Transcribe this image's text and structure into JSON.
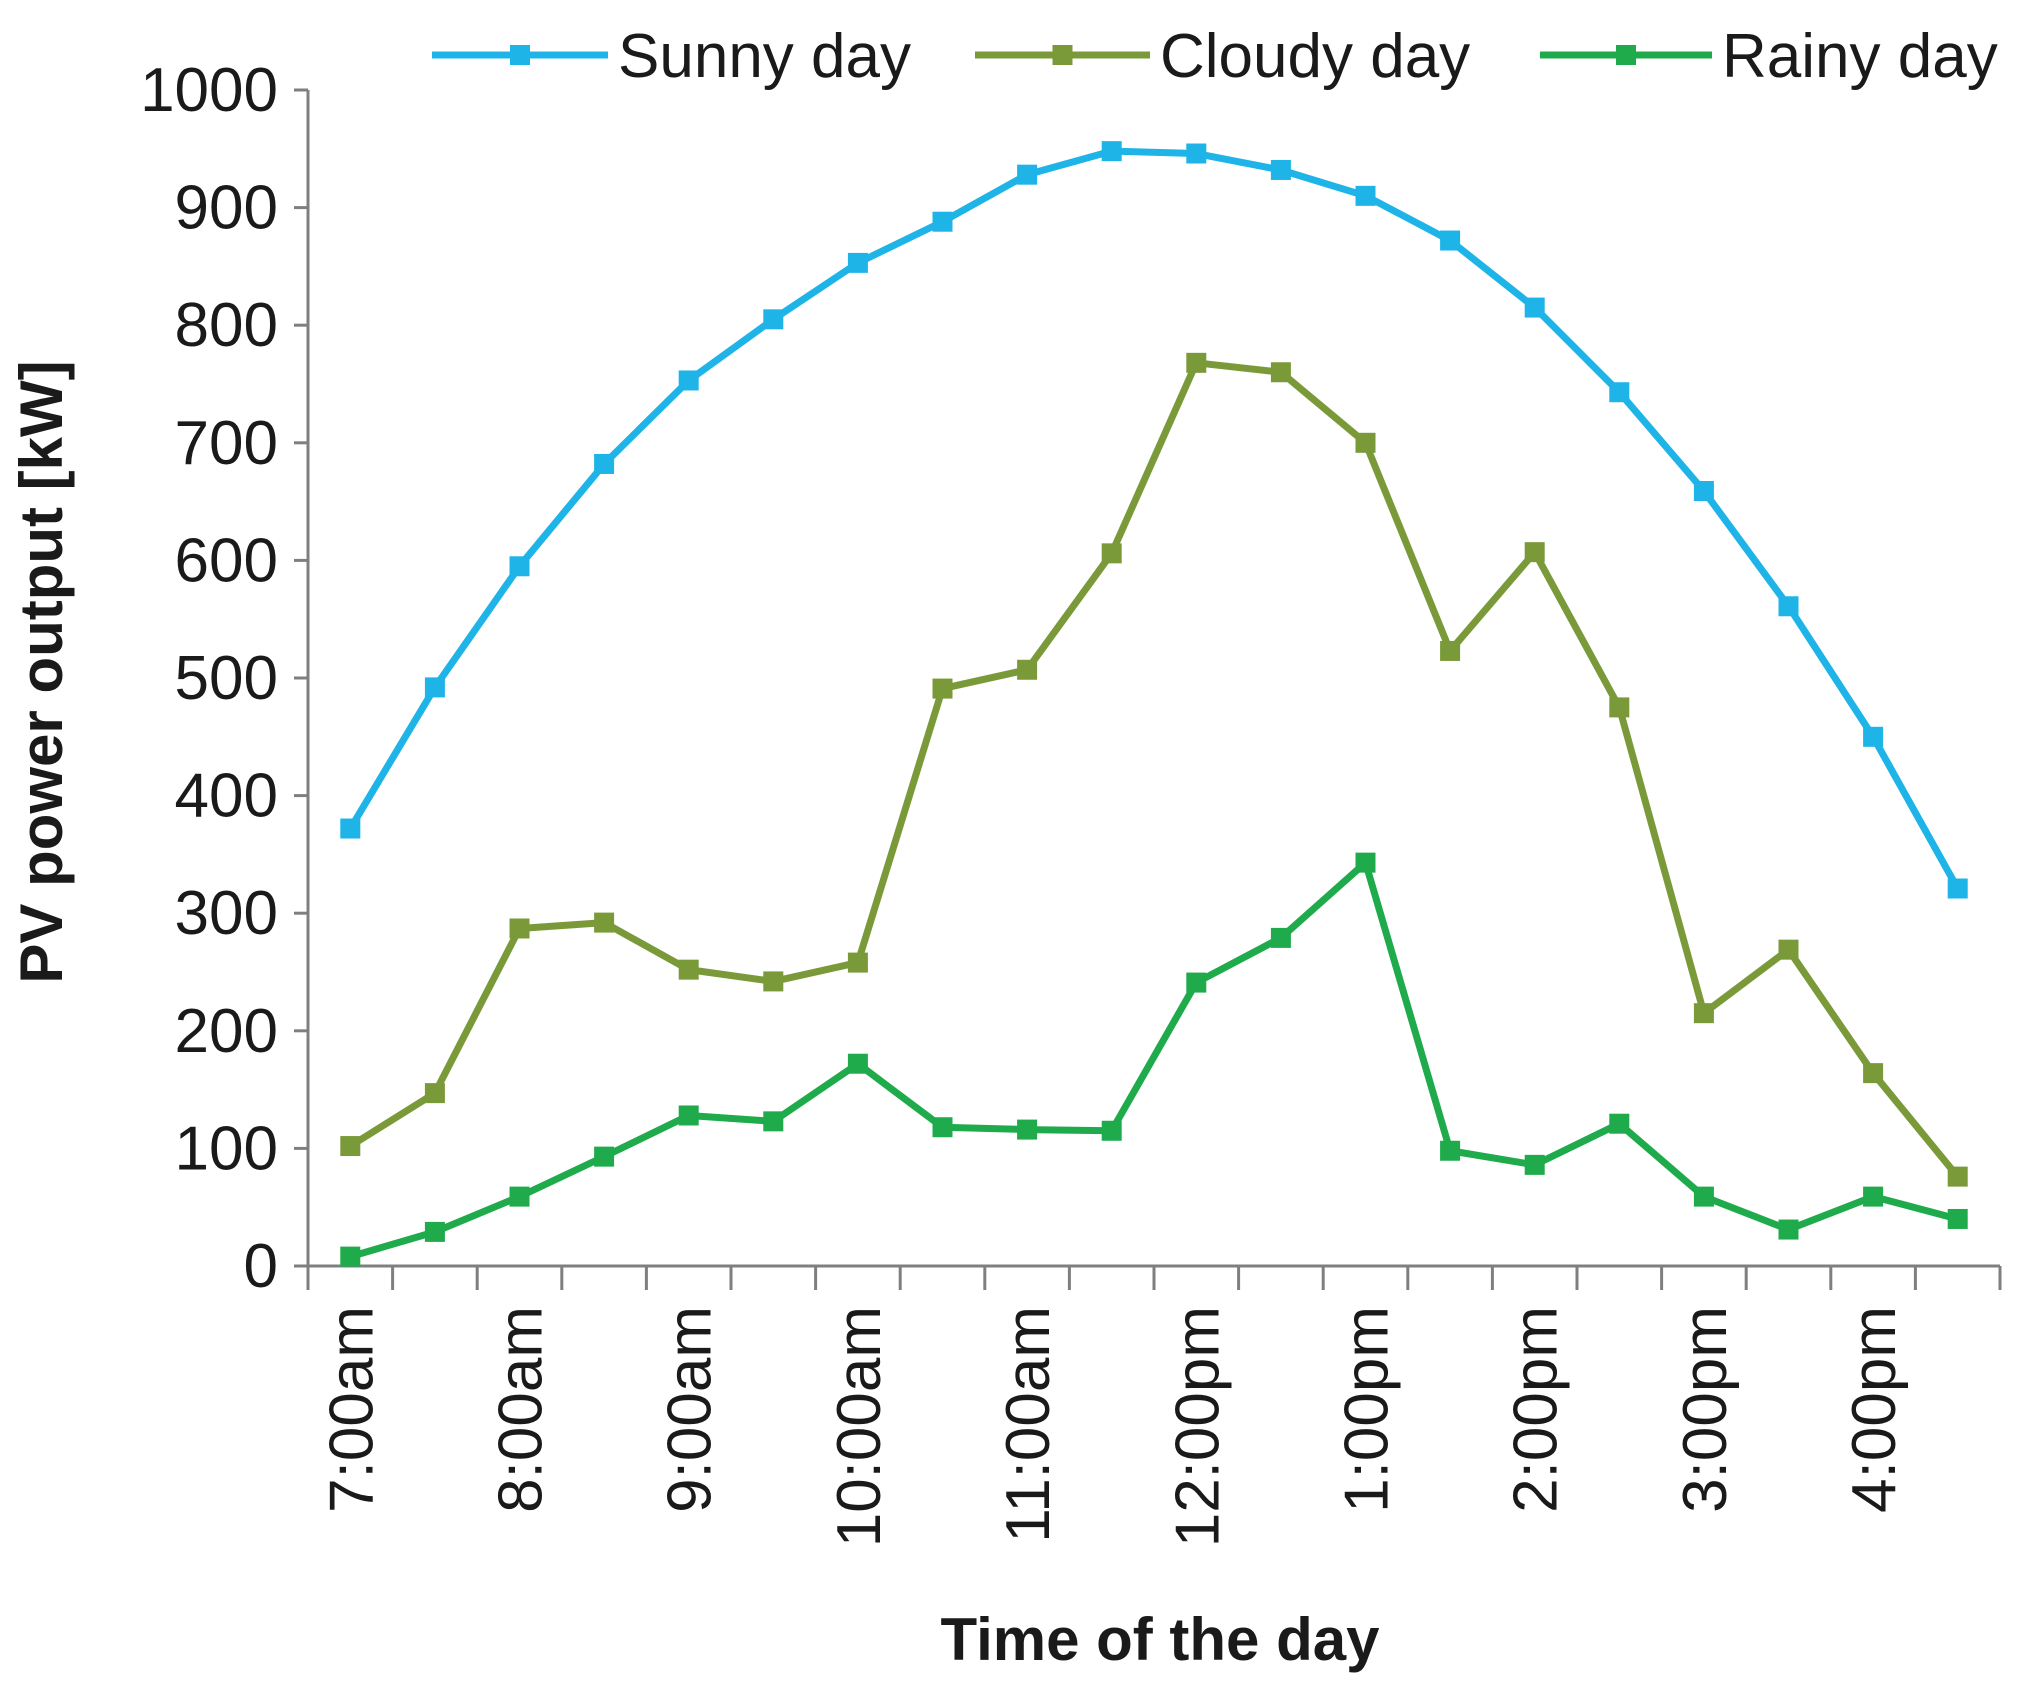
{
  "chart_data": {
    "type": "line",
    "title": "",
    "xlabel": "Time of the day",
    "ylabel": "PV power output [kW]",
    "ylim": [
      0,
      1000
    ],
    "y_ticks": [
      0,
      100,
      200,
      300,
      400,
      500,
      600,
      700,
      800,
      900,
      1000
    ],
    "x_tick_labels": [
      "7:00am",
      "8:00am",
      "9:00am",
      "10:00am",
      "11:00am",
      "12:00pm",
      "1:00pm",
      "2:00pm",
      "3:00pm",
      "4:00pm"
    ],
    "x": [
      "7:00am",
      "7:30am",
      "8:00am",
      "8:30am",
      "9:00am",
      "9:30am",
      "10:00am",
      "10:30am",
      "11:00am",
      "11:30am",
      "12:00pm",
      "12:30pm",
      "1:00pm",
      "1:30pm",
      "2:00pm",
      "2:30pm",
      "3:00pm",
      "3:30pm",
      "4:00pm",
      "4:30pm"
    ],
    "legend_position": "top",
    "grid": false,
    "series": [
      {
        "name": "Sunny day",
        "color": "#1fb4e8",
        "marker": "square",
        "values": [
          372,
          492,
          595,
          682,
          753,
          805,
          853,
          888,
          928,
          948,
          946,
          932,
          910,
          872,
          815,
          743,
          659,
          561,
          450,
          321
        ]
      },
      {
        "name": "Cloudy day",
        "color": "#7a9a3a",
        "marker": "square",
        "values": [
          102,
          147,
          287,
          292,
          252,
          242,
          258,
          491,
          507,
          606,
          768,
          760,
          700,
          523,
          607,
          475,
          215,
          269,
          164,
          76
        ]
      },
      {
        "name": "Rainy day",
        "color": "#1fab4b",
        "marker": "square",
        "values": [
          8,
          29,
          59,
          93,
          128,
          123,
          172,
          118,
          116,
          115,
          241,
          279,
          343,
          98,
          86,
          121,
          59,
          31,
          59,
          40
        ]
      }
    ]
  }
}
